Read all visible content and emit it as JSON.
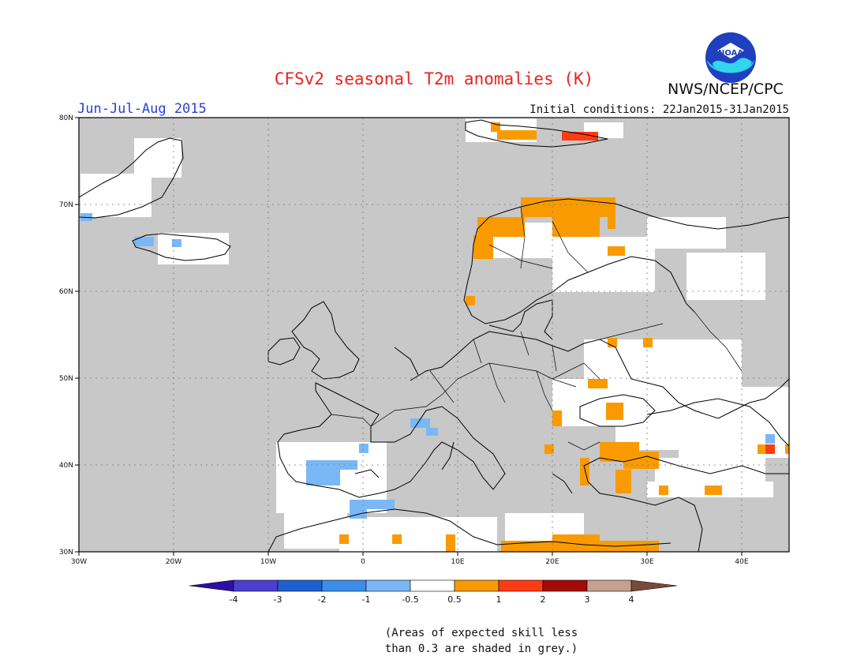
{
  "header": {
    "title": "CFSv2 seasonal T2m anomalies (K)",
    "season": "Jun-Jul-Aug 2015",
    "initial_conditions": "Initial conditions: 22Jan2015-31Jan2015",
    "agency": "NWS/NCEP/CPC",
    "logo_text": "NOAA"
  },
  "map": {
    "lon_range": [
      -30,
      45
    ],
    "lat_range": [
      30,
      80
    ],
    "lon_ticks": [
      "30W",
      "20W",
      "10W",
      "0",
      "10E",
      "20E",
      "30E",
      "40E"
    ],
    "lat_ticks": [
      "30N",
      "40N",
      "50N",
      "60N",
      "70N",
      "80N"
    ],
    "background_color": "#c8c8c8",
    "gridlines": true
  },
  "colorbar": {
    "labels": [
      "-4",
      "-3",
      "-2",
      "-1",
      "-0.5",
      "0.5",
      "1",
      "2",
      "3",
      "4"
    ],
    "colors": [
      "#2c0fa8",
      "#4a3fd0",
      "#1f5fcf",
      "#3b8ee8",
      "#7ab8f5",
      "#ffffff",
      "#f99b00",
      "#ff3b14",
      "#a50a0a",
      "#c8a090",
      "#7a4a38"
    ]
  },
  "footnote": {
    "line1": "(Areas of expected skill less",
    "line2": "than 0.3 are shaded in grey.)"
  }
}
